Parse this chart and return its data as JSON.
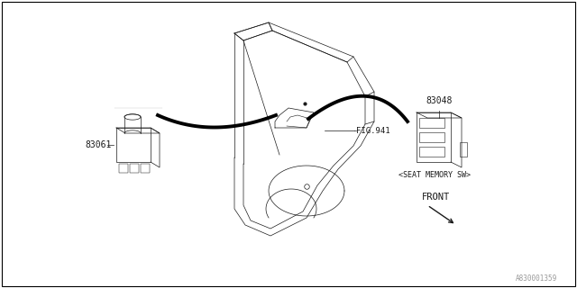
{
  "background_color": "#ffffff",
  "border_color": "#000000",
  "part_number_83048": "83048",
  "part_number_83061": "83061",
  "label_seat_memory": "<SEAT MEMORY SW>",
  "label_fig941": "FIG.941",
  "label_front": "FRONT",
  "watermark": "A830001359",
  "line_color": "#1a1a1a",
  "thin_line": 0.5,
  "thick_line": 2.5
}
